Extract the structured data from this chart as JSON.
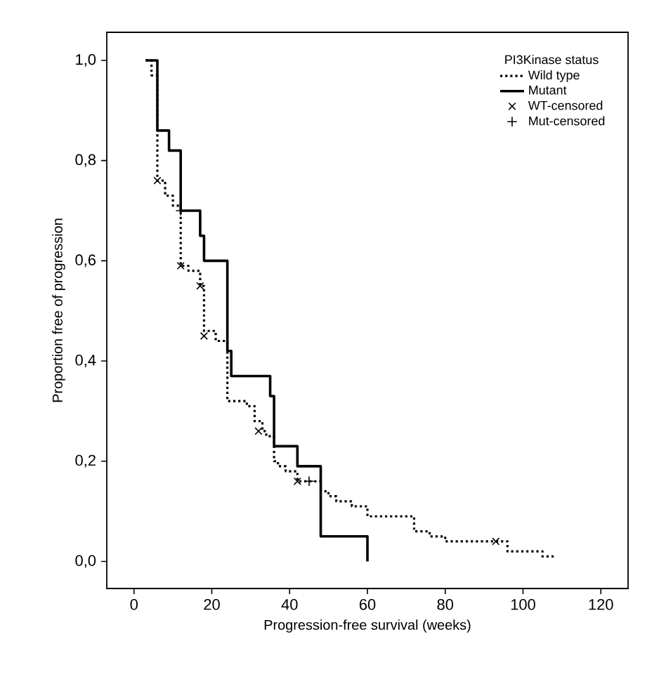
{
  "chart_data": {
    "type": "step",
    "xlabel": "Progression-free survival (weeks)",
    "ylabel": "Proportion free of progression",
    "legend_title": "PI3Kinase status",
    "xlim": [
      -7,
      127
    ],
    "ylim": [
      -0.054,
      1.056
    ],
    "xticks": [
      0,
      20,
      40,
      60,
      80,
      100,
      120
    ],
    "yticks": [
      {
        "value": 0,
        "label": "0,0"
      },
      {
        "value": 0.2,
        "label": "0,2"
      },
      {
        "value": 0.4,
        "label": "0,4"
      },
      {
        "value": 0.6,
        "label": "0,6"
      },
      {
        "value": 0.8,
        "label": "0,8"
      },
      {
        "value": 1.0,
        "label": "1,0"
      }
    ],
    "grid": false,
    "legend": "top right",
    "series": [
      {
        "name": "Wild type",
        "line_style": "dotted",
        "color": "#000000",
        "x": [
          3,
          4.5,
          6,
          8,
          10,
          12,
          14,
          17,
          18,
          21,
          24,
          27,
          29,
          31,
          33,
          34,
          36,
          37,
          39,
          42,
          48,
          50,
          52,
          56,
          60,
          72,
          76,
          80,
          84,
          96,
          103,
          105,
          108
        ],
        "values": [
          1.0,
          0.97,
          0.76,
          0.73,
          0.71,
          0.59,
          0.58,
          0.55,
          0.46,
          0.44,
          0.32,
          0.32,
          0.31,
          0.28,
          0.26,
          0.25,
          0.2,
          0.19,
          0.18,
          0.16,
          0.14,
          0.13,
          0.12,
          0.11,
          0.09,
          0.06,
          0.05,
          0.04,
          0.04,
          0.02,
          0.02,
          0.01,
          0.01
        ]
      },
      {
        "name": "Mutant",
        "line_style": "solid",
        "color": "#000000",
        "x": [
          3,
          6,
          9,
          12,
          17,
          18,
          24,
          25,
          35,
          36,
          42,
          48,
          60
        ],
        "values": [
          1.0,
          0.86,
          0.82,
          0.7,
          0.65,
          0.6,
          0.42,
          0.37,
          0.33,
          0.23,
          0.19,
          0.05,
          0.0
        ]
      },
      {
        "name": "WT-censored",
        "type": "scatter",
        "marker": "cross",
        "color": "#000000",
        "x": [
          6,
          12,
          17,
          18,
          32,
          42,
          93
        ],
        "values": [
          0.76,
          0.59,
          0.55,
          0.45,
          0.26,
          0.16,
          0.04
        ]
      },
      {
        "name": "Mut-censored",
        "type": "scatter",
        "marker": "plus",
        "color": "#000000",
        "x": [
          12,
          45
        ],
        "values": [
          0.7,
          0.16
        ]
      }
    ]
  }
}
